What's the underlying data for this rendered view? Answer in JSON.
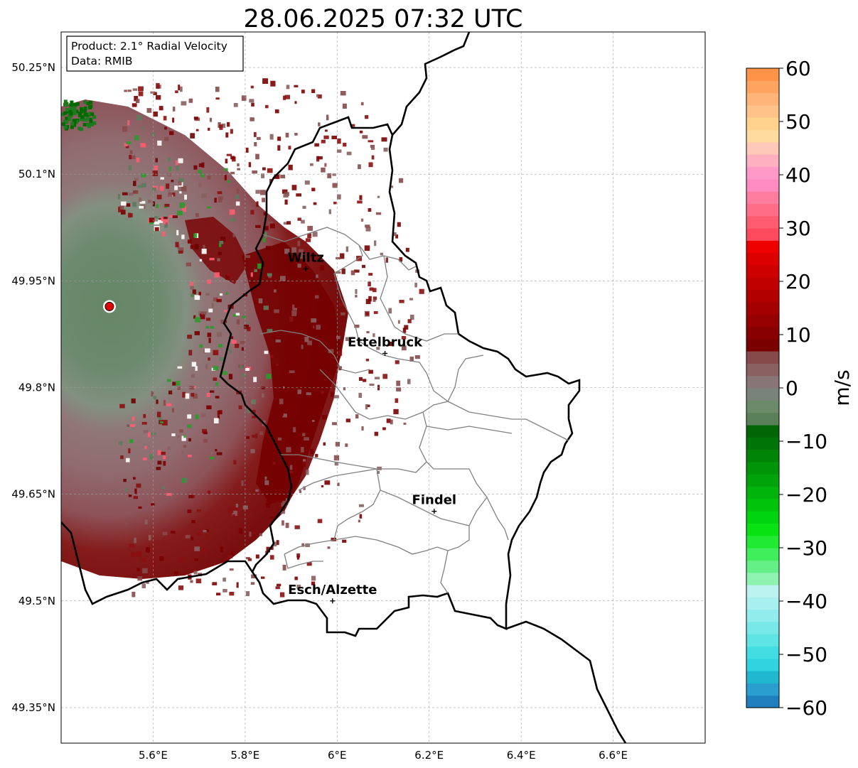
{
  "title": "28.06.2025 07:32 UTC",
  "info_box": {
    "product": "Product: 2.1° Radial Velocity",
    "data": "Data: RMIB"
  },
  "map": {
    "lon_range": [
      5.4,
      6.8
    ],
    "lat_range": [
      49.3,
      50.3
    ],
    "lon_ticks": [
      {
        "value": 5.6,
        "label": "5.6°E"
      },
      {
        "value": 5.8,
        "label": "5.8°E"
      },
      {
        "value": 6.0,
        "label": "6°E"
      },
      {
        "value": 6.2,
        "label": "6.2°E"
      },
      {
        "value": 6.4,
        "label": "6.4°E"
      },
      {
        "value": 6.6,
        "label": "6.6°E"
      }
    ],
    "lat_ticks": [
      {
        "value": 50.25,
        "label": "50.25°N"
      },
      {
        "value": 50.1,
        "label": "50.1°N"
      },
      {
        "value": 49.95,
        "label": "49.95°N"
      },
      {
        "value": 49.8,
        "label": "49.8°N"
      },
      {
        "value": 49.65,
        "label": "49.65°N"
      },
      {
        "value": 49.5,
        "label": "49.5°N"
      },
      {
        "value": 49.35,
        "label": "49.35°N"
      }
    ],
    "radar_site": {
      "lon": 5.505,
      "lat": 49.914,
      "color": "#e00000"
    },
    "cities": [
      {
        "name": "Wiltz",
        "lon": 5.932,
        "lat": 49.967
      },
      {
        "name": "Ettelbruck",
        "lon": 6.104,
        "lat": 49.848
      },
      {
        "name": "Findel",
        "lon": 6.211,
        "lat": 49.626
      },
      {
        "name": "Esch/Alzette",
        "lon": 5.99,
        "lat": 49.5
      }
    ],
    "border_color": "#000000",
    "canton_color": "#808080"
  },
  "colorbar": {
    "label": "m/s",
    "min": -60,
    "max": 60,
    "ticks": [
      {
        "value": 60,
        "label": "60"
      },
      {
        "value": 50,
        "label": "50"
      },
      {
        "value": 40,
        "label": "40"
      },
      {
        "value": 30,
        "label": "30"
      },
      {
        "value": 20,
        "label": "20"
      },
      {
        "value": 10,
        "label": "10"
      },
      {
        "value": 0,
        "label": "0"
      },
      {
        "value": -10,
        "label": "−10"
      },
      {
        "value": -20,
        "label": "−20"
      },
      {
        "value": -30,
        "label": "−30"
      },
      {
        "value": -40,
        "label": "−40"
      },
      {
        "value": -50,
        "label": "−50"
      },
      {
        "value": -60,
        "label": "−60"
      }
    ],
    "colors": [
      "#1f7fbf",
      "#2a9fcf",
      "#22b7d0",
      "#2fd4e0",
      "#41dde0",
      "#5fe4e4",
      "#78e8e8",
      "#93ecec",
      "#a8f0f0",
      "#bcf2ee",
      "#8ef2b0",
      "#64ef86",
      "#3fee5a",
      "#20ea32",
      "#06e212",
      "#00d40e",
      "#00c40c",
      "#00b40b",
      "#00a40a",
      "#009409",
      "#008408",
      "#007406",
      "#006605",
      "#598059",
      "#6a8a6a",
      "#7a837a",
      "#887575",
      "#8a6060",
      "#874a4a",
      "#7a0000",
      "#880000",
      "#960000",
      "#a40000",
      "#b20000",
      "#c00000",
      "#ce0000",
      "#dc0000",
      "#ee0000",
      "#ff4a5e",
      "#ff5c70",
      "#ff6e86",
      "#ff7ea0",
      "#ff8cc0",
      "#ff9ac8",
      "#ffb0c0",
      "#ffc8b8",
      "#ffdba0",
      "#ffd38e",
      "#ffc38a",
      "#ffb47a",
      "#ffa460",
      "#ff9448"
    ]
  }
}
